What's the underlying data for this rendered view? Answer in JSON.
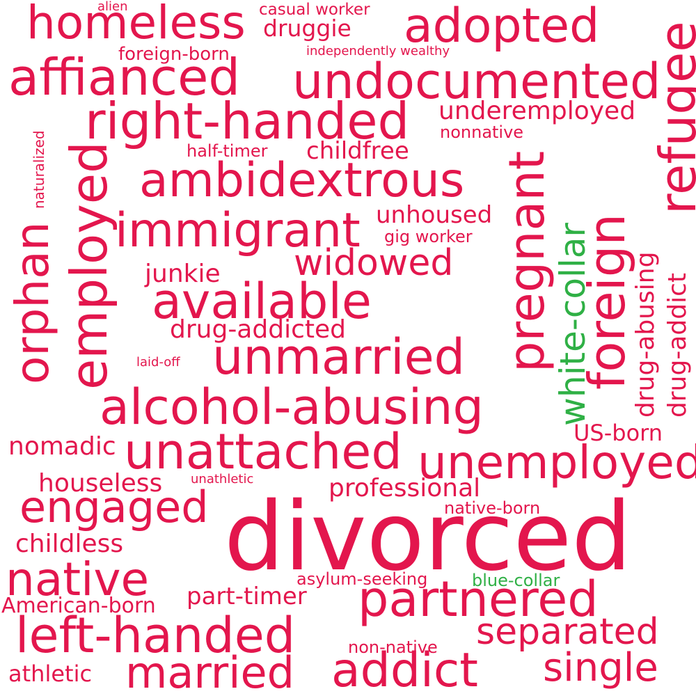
{
  "colors": {
    "primary": "#e3164d",
    "accent": "#2fb045",
    "background": "#ffffff"
  },
  "words": [
    "alien",
    "casual worker",
    "homeless",
    "druggie",
    "adopted",
    "foreign-born",
    "independently wealthy",
    "affianced",
    "undocumented",
    "refugee",
    "naturalized",
    "right-handed",
    "underemployed",
    "nonnative",
    "half-timer",
    "childfree",
    "employed",
    "ambidextrous",
    "white-collar",
    "orphan",
    "immigrant",
    "unhoused",
    "gig worker",
    "pregnant",
    "foreign",
    "drug-abusing",
    "drug-addict",
    "widowed",
    "junkie",
    "available",
    "drug-addicted",
    "unmarried",
    "laid-off",
    "alcohol-abusing",
    "nomadic",
    "unattached",
    "unemployed",
    "US-born",
    "houseless",
    "unathletic",
    "professional",
    "engaged",
    "native-born",
    "divorced",
    "childless",
    "native",
    "asylum-seeking",
    "blue-collar",
    "part-timer",
    "partnered",
    "American-born",
    "left-handed",
    "separated",
    "non-native",
    "athletic",
    "married",
    "addict",
    "single"
  ]
}
